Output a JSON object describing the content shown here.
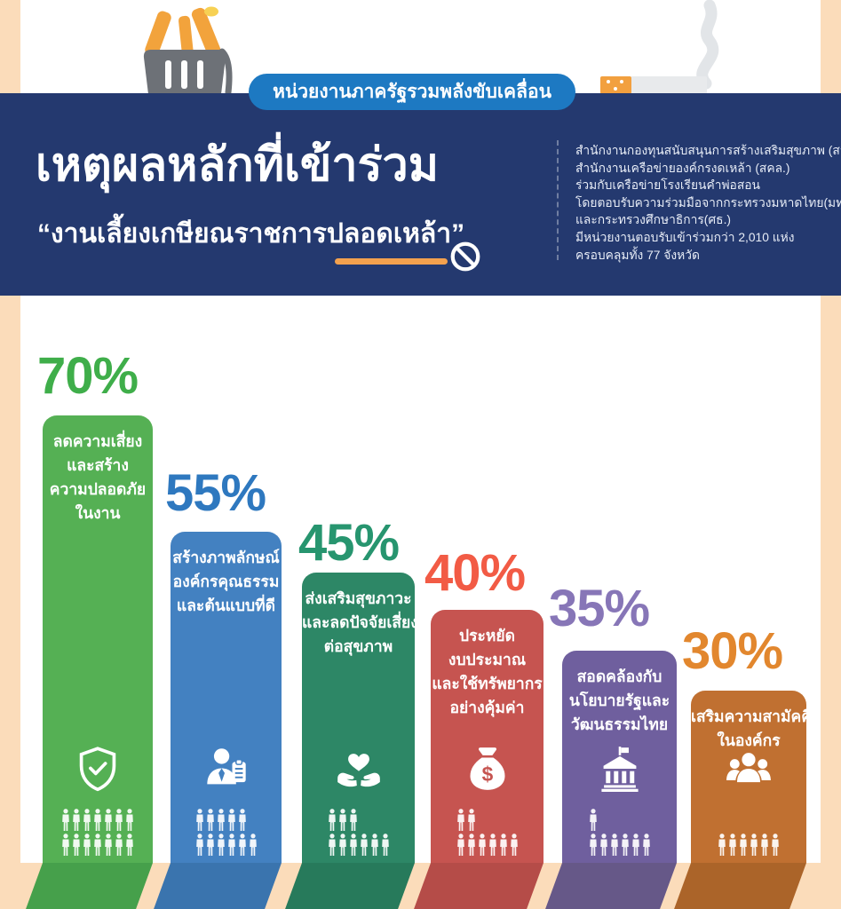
{
  "badge": {
    "label": "หน่วยงานภาครัฐรวมพลังขับเคลื่อน"
  },
  "header": {
    "title": "เหตุผลหลักที่เข้าร่วม",
    "subtitle": "“งานเลี้ยงเกษียณราชการปลอดเหล้า”",
    "underline_color": "#f3a14e",
    "band_color": "#24396f",
    "pill_color": "#1d79c2",
    "info_lines": [
      "สำนักงานกองทุนสนับสนุนการสร้างเสริมสุขภาพ (สสส.)",
      "สำนักงานเครือข่ายองค์กรงดเหล้า (สคล.)",
      "ร่วมกับเครือข่ายโรงเรียนคำพ่อสอน",
      "โดยตอบรับความร่วมมือจากกระทรวงมหาดไทย(มท.)",
      "และกระทรวงศึกษาธิการ(ศธ.)",
      "มีหน่วยงานตอบรับเข้าร่วมกว่า 2,010 แห่ง",
      "ครอบคลุมทั้ง 77 จังหวัด"
    ]
  },
  "decor": {
    "left_icon": "trash-bin-with-bottles-icon",
    "right_icon": "cigarette-with-smoke-icon",
    "peach_color": "#fbdcba"
  },
  "chart_data": {
    "type": "bar",
    "title": "เหตุผลหลักที่เข้าร่วม “งานเลี้ยงเกษียณราชการปลอดเหล้า”",
    "unit": "%",
    "categories": [
      "ลดความเสี่ยงและสร้างความปลอดภัยในงาน",
      "สร้างภาพลักษณ์องค์กรคุณธรรมและต้นแบบที่ดี",
      "ส่งเสริมสุขภาวะและลดปัจจัยเสี่ยงต่อสุขภาพ",
      "ประหยัดงบประมาณและใช้ทรัพยากรอย่างคุ้มค่า",
      "สอดคล้องกับนโยบายรัฐและวัฒนธรรมไทย",
      "เสริมความสามัคคีในองค์กร"
    ],
    "values": [
      70,
      55,
      45,
      40,
      35,
      30
    ],
    "colors": [
      "#55b054",
      "#4381c1",
      "#2d8766",
      "#c65450",
      "#6f5f9e",
      "#c07031"
    ],
    "ylim": [
      0,
      100
    ],
    "legend": false,
    "grid": false,
    "pictogram_unit_percent": 5
  },
  "bars": [
    {
      "percent": "70%",
      "value": 70,
      "icon": "shield-check-icon",
      "lines": [
        "ลดความเสี่ยง",
        "และสร้าง",
        "ความปลอดภัย",
        "ในงาน"
      ],
      "fill": "#55b054",
      "label_color": "#3fae4a",
      "ribbon_color": "#46a04b",
      "people_rows": [
        7,
        7
      ]
    },
    {
      "percent": "55%",
      "value": 55,
      "icon": "person-clipboard-icon",
      "lines": [
        "สร้างภาพลักษณ์",
        "องค์กรคุณธรรม",
        "และต้นแบบที่ดี"
      ],
      "fill": "#4381c1",
      "label_color": "#2e78bf",
      "ribbon_color": "#3a74ae",
      "people_rows": [
        5,
        6
      ]
    },
    {
      "percent": "45%",
      "value": 45,
      "icon": "hands-holding-heart-icon",
      "lines": [
        "ส่งเสริมสุขภาวะ",
        "และลดปัจจัยเสี่ยง",
        "ต่อสุขภาพ"
      ],
      "fill": "#2d8766",
      "label_color": "#27956f",
      "ribbon_color": "#277a5b",
      "people_rows": [
        3,
        6
      ]
    },
    {
      "percent": "40%",
      "value": 40,
      "icon": "money-bag-icon",
      "lines": [
        "ประหยัด",
        "งบประมาณ",
        "และใช้ทรัพยากร",
        "อย่างคุ้มค่า"
      ],
      "fill": "#c65450",
      "label_color": "#f25b45",
      "ribbon_color": "#b54c48",
      "people_rows": [
        2,
        6
      ]
    },
    {
      "percent": "35%",
      "value": 35,
      "icon": "government-building-icon",
      "lines": [
        "สอดคล้องกับ",
        "นโยบายรัฐและ",
        "วัฒนธรรมไทย"
      ],
      "fill": "#6f5f9e",
      "label_color": "#8776b7",
      "ribbon_color": "#665888",
      "people_rows": [
        1,
        6
      ]
    },
    {
      "percent": "30%",
      "value": 30,
      "icon": "people-group-icon",
      "lines": [
        "เสริมความสามัคคี",
        "ในองค์กร"
      ],
      "fill": "#c07031",
      "label_color": "#e2872e",
      "ribbon_color": "#ab6429",
      "people_rows": [
        6
      ]
    }
  ]
}
